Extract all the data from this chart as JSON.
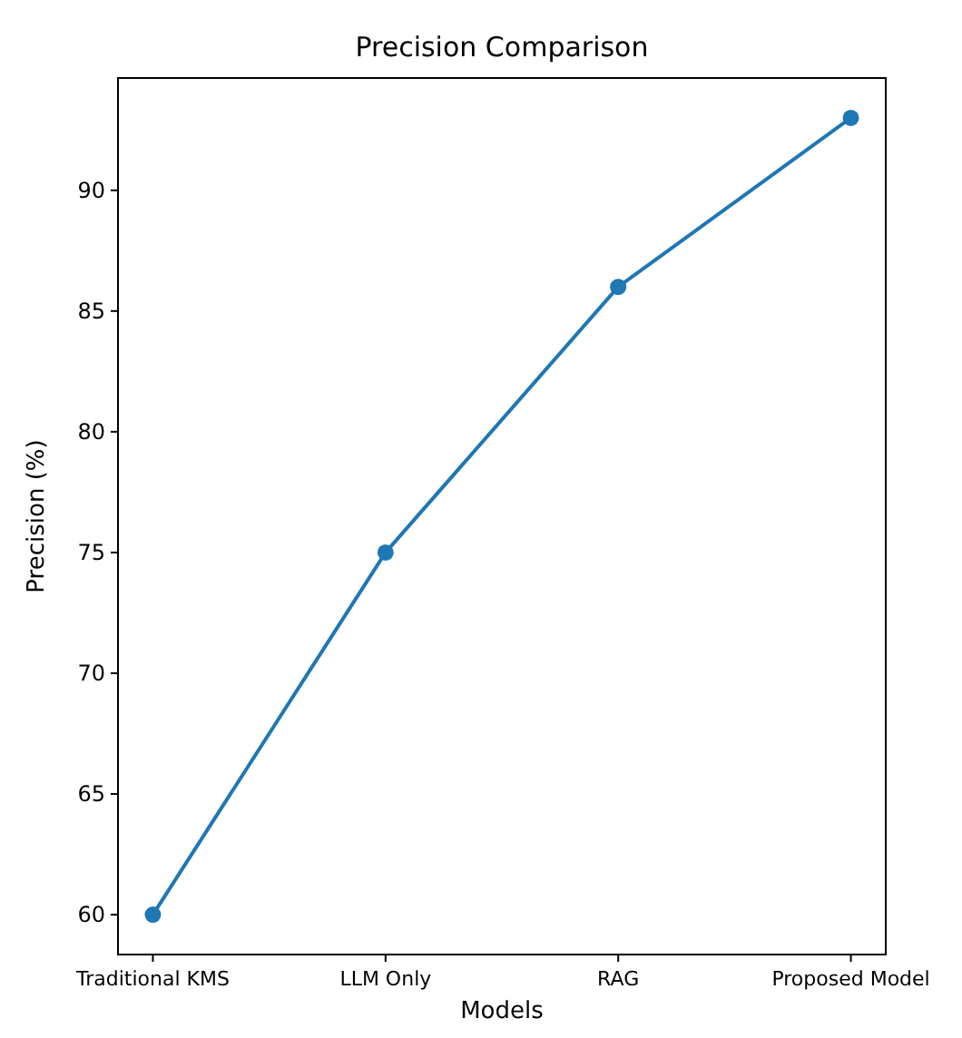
{
  "chart_data": {
    "type": "line",
    "title": "Precision Comparison",
    "xlabel": "Models",
    "ylabel": "Precision (%)",
    "categories": [
      "Traditional KMS",
      "LLM Only",
      "RAG",
      "Proposed Model"
    ],
    "series": [
      {
        "color": "#1f77b4",
        "values": [
          60,
          75,
          86,
          93
        ]
      }
    ],
    "ylim": [
      58.35,
      94.65
    ],
    "yticks": [
      60,
      65,
      70,
      75,
      80,
      85,
      90
    ],
    "marker": "circle",
    "line_style": "solid",
    "grid": false
  }
}
